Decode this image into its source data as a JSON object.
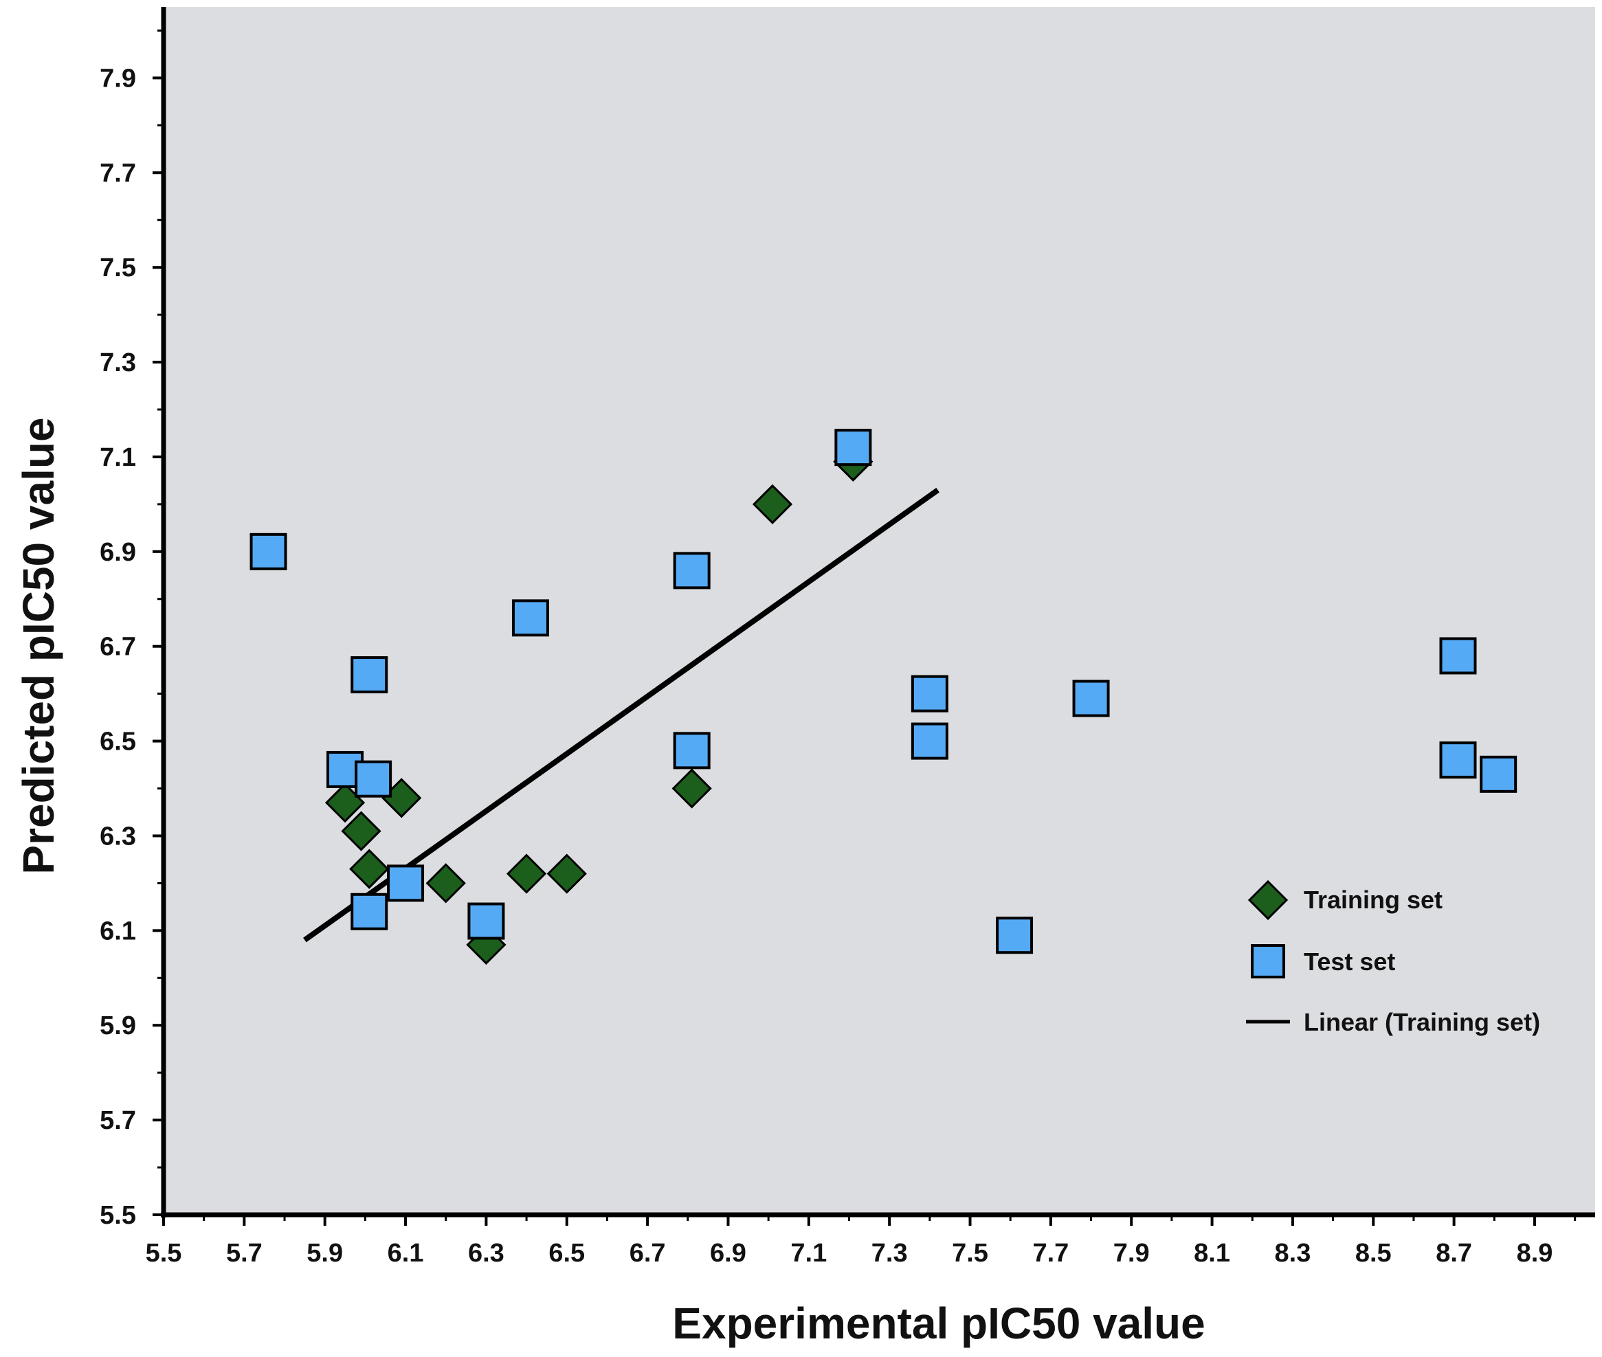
{
  "chart_data": {
    "type": "scatter",
    "title": "",
    "xlabel": "Experimental pIC50 value",
    "ylabel": "Predicted pIC50 value",
    "xlim": [
      5.5,
      9.05
    ],
    "ylim": [
      5.5,
      8.05
    ],
    "xticks": [
      "5.5",
      "5.7",
      "5.9",
      "6.1",
      "6.3",
      "6.5",
      "6.7",
      "6.9",
      "7.1",
      "7.3",
      "7.5",
      "7.7",
      "7.9",
      "8.1",
      "8.3",
      "8.5",
      "8.7",
      "8.9"
    ],
    "yticks": [
      "5.5",
      "5.7",
      "5.9",
      "6.1",
      "6.3",
      "6.5",
      "6.7",
      "6.9",
      "7.1",
      "7.3",
      "7.5",
      "7.7",
      "7.9"
    ],
    "plot_background": "#dcdde0",
    "legend_position": "right",
    "series": [
      {
        "name": "Training set",
        "marker": "diamond",
        "color": "#1c5e1c",
        "points": [
          [
            5.95,
            6.37
          ],
          [
            5.99,
            6.31
          ],
          [
            6.01,
            6.23
          ],
          [
            6.09,
            6.38
          ],
          [
            6.2,
            6.2
          ],
          [
            6.3,
            6.07
          ],
          [
            6.4,
            6.22
          ],
          [
            6.5,
            6.22
          ],
          [
            6.81,
            6.4
          ],
          [
            7.01,
            7.0
          ],
          [
            7.21,
            7.09
          ]
        ]
      },
      {
        "name": "Test set",
        "marker": "square",
        "color": "#55aaf5",
        "points": [
          [
            5.76,
            6.9
          ],
          [
            5.95,
            6.44
          ],
          [
            6.01,
            6.64
          ],
          [
            6.02,
            6.42
          ],
          [
            6.01,
            6.14
          ],
          [
            6.1,
            6.2
          ],
          [
            6.3,
            6.12
          ],
          [
            6.41,
            6.76
          ],
          [
            6.81,
            6.86
          ],
          [
            6.81,
            6.48
          ],
          [
            7.21,
            7.12
          ],
          [
            7.4,
            6.6
          ],
          [
            7.4,
            6.5
          ],
          [
            7.61,
            6.09
          ],
          [
            7.8,
            6.59
          ],
          [
            8.71,
            6.68
          ],
          [
            8.71,
            6.46
          ],
          [
            8.81,
            6.43
          ]
        ]
      }
    ],
    "trendline": {
      "name": "Linear (Training set)",
      "color": "#000000",
      "x": [
        5.85,
        7.42
      ],
      "y": [
        6.08,
        7.03
      ]
    }
  }
}
